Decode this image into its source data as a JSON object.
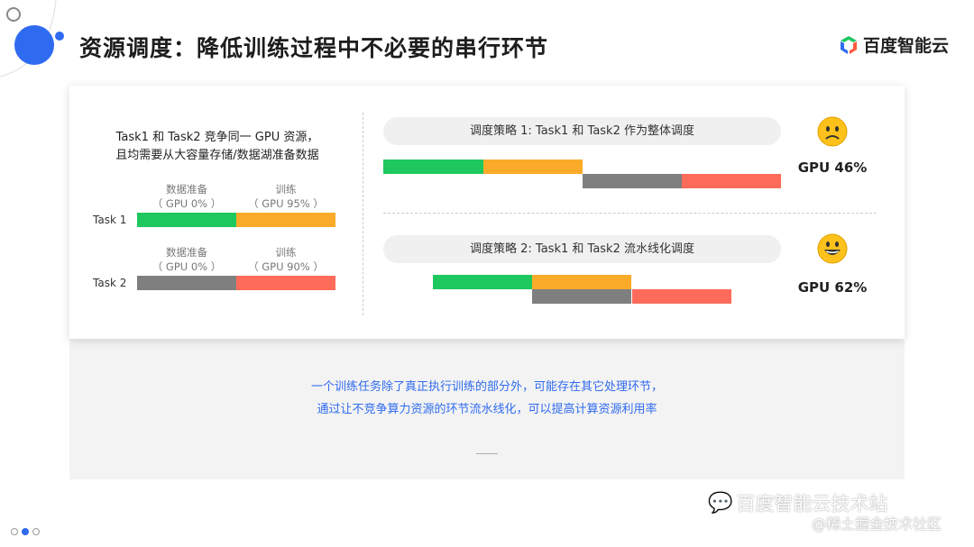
{
  "header": {
    "title": "资源调度：降低训练过程中不必要的串行环节",
    "logo_text": "百度智能云"
  },
  "left": {
    "title_lines": [
      "Task1 和 Task2 竞争同一 GPU 资源，",
      "且均需要从大容量存储/数据湖准备数据"
    ],
    "tasks": [
      {
        "name": "Task 1",
        "phases": [
          {
            "label": "数据准备",
            "gpu": "（ GPU 0% ）",
            "color": "#1ec85f"
          },
          {
            "label": "训练",
            "gpu": "（ GPU 95% ）",
            "color": "#fbab2a"
          }
        ]
      },
      {
        "name": "Task 2",
        "phases": [
          {
            "label": "数据准备",
            "gpu": "（ GPU 0% ）",
            "color": "#7f7f7f"
          },
          {
            "label": "训练",
            "gpu": "（ GPU 90% ）",
            "color": "#ff6b5a"
          }
        ]
      }
    ]
  },
  "strategies": [
    {
      "label": "调度策略 1: Task1 和 Task2 作为整体调度",
      "gpu": "GPU 46%",
      "emoji": "sad-face-icon"
    },
    {
      "label": "调度策略 2: Task1 和 Task2 流水线化调度",
      "gpu": "GPU 62%",
      "emoji": "happy-face-icon"
    }
  ],
  "summary": [
    "一个训练任务除了真正执行训练的部分外，可能存在其它处理环节，",
    "通过让不竞争算力资源的环节流水线化，可以提高计算资源利用率"
  ],
  "watermark": {
    "line1": "百度智能云技术站",
    "line2": "@稀土掘金技术社区"
  },
  "colors": {
    "accent": "#2f6bf0",
    "green": "#1ec85f",
    "orange": "#fbab2a",
    "gray": "#7f7f7f",
    "red": "#ff6b5a"
  }
}
